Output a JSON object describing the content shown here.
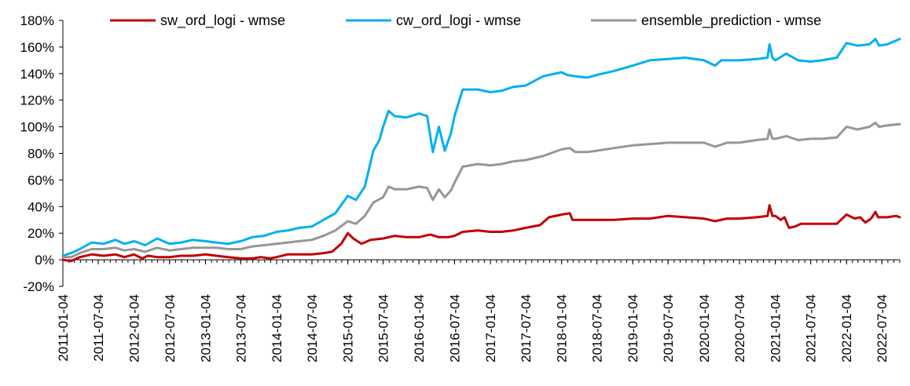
{
  "chart_data": {
    "type": "line",
    "title": "",
    "xlabel": "",
    "ylabel": "",
    "y_unit": "%",
    "ylim": [
      -20,
      180
    ],
    "y_ticks": [
      -20,
      0,
      20,
      40,
      60,
      80,
      100,
      120,
      140,
      160,
      180
    ],
    "y_tick_labels": [
      "-20%",
      "0%",
      "20%",
      "40%",
      "60%",
      "80%",
      "100%",
      "120%",
      "140%",
      "160%",
      "180%"
    ],
    "x_range": [
      "2011-01-04",
      "2022-10-04"
    ],
    "x_tick_labels": [
      "2011-01-04",
      "2011-07-04",
      "2012-01-04",
      "2012-07-04",
      "2013-01-04",
      "2013-07-04",
      "2014-01-04",
      "2014-07-04",
      "2015-01-04",
      "2015-07-04",
      "2016-01-04",
      "2016-07-04",
      "2017-01-04",
      "2017-07-04",
      "2018-01-04",
      "2018-07-04",
      "2019-01-04",
      "2019-07-04",
      "2020-01-04",
      "2020-07-04",
      "2021-01-04",
      "2021-07-04",
      "2022-01-04",
      "2022-07-04"
    ],
    "legend_position": "top",
    "grid": false,
    "series": [
      {
        "name": "sw_ord_logi - wmse",
        "color": "#C00000",
        "points": [
          [
            "2011-01-04",
            0
          ],
          [
            "2011-02-15",
            -1
          ],
          [
            "2011-04-01",
            2
          ],
          [
            "2011-06-01",
            4
          ],
          [
            "2011-08-01",
            3
          ],
          [
            "2011-10-01",
            4
          ],
          [
            "2011-11-15",
            2
          ],
          [
            "2012-01-04",
            4
          ],
          [
            "2012-02-15",
            1
          ],
          [
            "2012-03-15",
            3
          ],
          [
            "2012-05-01",
            2
          ],
          [
            "2012-07-04",
            2
          ],
          [
            "2012-09-01",
            3
          ],
          [
            "2012-11-01",
            3
          ],
          [
            "2013-01-04",
            4
          ],
          [
            "2013-03-01",
            3
          ],
          [
            "2013-05-01",
            2
          ],
          [
            "2013-07-04",
            1
          ],
          [
            "2013-09-01",
            1
          ],
          [
            "2013-10-15",
            2
          ],
          [
            "2013-12-01",
            1
          ],
          [
            "2014-01-04",
            2
          ],
          [
            "2014-03-01",
            4
          ],
          [
            "2014-05-01",
            4
          ],
          [
            "2014-07-04",
            4
          ],
          [
            "2014-09-01",
            5
          ],
          [
            "2014-10-15",
            6
          ],
          [
            "2014-12-01",
            12
          ],
          [
            "2015-01-04",
            20
          ],
          [
            "2015-02-01",
            16
          ],
          [
            "2015-03-15",
            12
          ],
          [
            "2015-05-01",
            15
          ],
          [
            "2015-07-04",
            16
          ],
          [
            "2015-09-01",
            18
          ],
          [
            "2015-11-01",
            17
          ],
          [
            "2016-01-04",
            17
          ],
          [
            "2016-03-01",
            19
          ],
          [
            "2016-04-15",
            17
          ],
          [
            "2016-06-01",
            17
          ],
          [
            "2016-07-04",
            18
          ],
          [
            "2016-08-15",
            21
          ],
          [
            "2016-11-01",
            22
          ],
          [
            "2017-01-04",
            21
          ],
          [
            "2017-03-01",
            21
          ],
          [
            "2017-05-01",
            22
          ],
          [
            "2017-07-04",
            24
          ],
          [
            "2017-09-15",
            26
          ],
          [
            "2017-11-01",
            32
          ],
          [
            "2018-01-04",
            34
          ],
          [
            "2018-02-15",
            35
          ],
          [
            "2018-03-01",
            30
          ],
          [
            "2018-05-01",
            30
          ],
          [
            "2018-07-04",
            30
          ],
          [
            "2018-10-01",
            30
          ],
          [
            "2019-01-04",
            31
          ],
          [
            "2019-04-01",
            31
          ],
          [
            "2019-07-04",
            33
          ],
          [
            "2019-10-01",
            32
          ],
          [
            "2020-01-04",
            31
          ],
          [
            "2020-03-01",
            29
          ],
          [
            "2020-05-01",
            31
          ],
          [
            "2020-07-04",
            31
          ],
          [
            "2020-10-01",
            32
          ],
          [
            "2020-11-25",
            33
          ],
          [
            "2020-12-05",
            41
          ],
          [
            "2020-12-20",
            33
          ],
          [
            "2021-01-04",
            33
          ],
          [
            "2021-02-01",
            30
          ],
          [
            "2021-02-20",
            32
          ],
          [
            "2021-03-15",
            24
          ],
          [
            "2021-04-15",
            25
          ],
          [
            "2021-05-15",
            27
          ],
          [
            "2021-07-04",
            27
          ],
          [
            "2021-09-01",
            27
          ],
          [
            "2021-11-15",
            27
          ],
          [
            "2022-01-04",
            34
          ],
          [
            "2022-02-15",
            31
          ],
          [
            "2022-03-15",
            32
          ],
          [
            "2022-04-10",
            28
          ],
          [
            "2022-05-10",
            31
          ],
          [
            "2022-06-01",
            36
          ],
          [
            "2022-06-15",
            32
          ],
          [
            "2022-08-01",
            32
          ],
          [
            "2022-09-15",
            33
          ],
          [
            "2022-10-04",
            32
          ]
        ]
      },
      {
        "name": "cw_ord_logi - wmse",
        "color": "#00B0F0",
        "points": [
          [
            "2011-01-04",
            3
          ],
          [
            "2011-02-15",
            5
          ],
          [
            "2011-04-01",
            8
          ],
          [
            "2011-06-01",
            13
          ],
          [
            "2011-08-01",
            12
          ],
          [
            "2011-10-01",
            15
          ],
          [
            "2011-11-15",
            12
          ],
          [
            "2012-01-04",
            14
          ],
          [
            "2012-03-01",
            11
          ],
          [
            "2012-05-01",
            16
          ],
          [
            "2012-07-04",
            12
          ],
          [
            "2012-09-01",
            13
          ],
          [
            "2012-11-01",
            15
          ],
          [
            "2013-01-04",
            14
          ],
          [
            "2013-03-01",
            13
          ],
          [
            "2013-05-01",
            12
          ],
          [
            "2013-07-04",
            14
          ],
          [
            "2013-09-01",
            17
          ],
          [
            "2013-11-01",
            18
          ],
          [
            "2014-01-04",
            21
          ],
          [
            "2014-03-01",
            22
          ],
          [
            "2014-05-01",
            24
          ],
          [
            "2014-07-04",
            25
          ],
          [
            "2014-09-01",
            30
          ],
          [
            "2014-11-01",
            35
          ],
          [
            "2015-01-04",
            48
          ],
          [
            "2015-02-15",
            45
          ],
          [
            "2015-04-01",
            55
          ],
          [
            "2015-05-15",
            82
          ],
          [
            "2015-06-15",
            90
          ],
          [
            "2015-07-04",
            100
          ],
          [
            "2015-08-01",
            112
          ],
          [
            "2015-09-01",
            108
          ],
          [
            "2015-11-01",
            107
          ],
          [
            "2016-01-04",
            110
          ],
          [
            "2016-02-15",
            108
          ],
          [
            "2016-03-15",
            81
          ],
          [
            "2016-04-15",
            100
          ],
          [
            "2016-05-15",
            82
          ],
          [
            "2016-06-15",
            95
          ],
          [
            "2016-07-04",
            108
          ],
          [
            "2016-08-15",
            128
          ],
          [
            "2016-11-01",
            128
          ],
          [
            "2017-01-04",
            126
          ],
          [
            "2017-03-01",
            127
          ],
          [
            "2017-05-01",
            130
          ],
          [
            "2017-07-04",
            131
          ],
          [
            "2017-10-01",
            138
          ],
          [
            "2018-01-04",
            141
          ],
          [
            "2018-02-01",
            139
          ],
          [
            "2018-03-15",
            138
          ],
          [
            "2018-05-15",
            137
          ],
          [
            "2018-07-04",
            139
          ],
          [
            "2018-10-01",
            142
          ],
          [
            "2019-01-04",
            146
          ],
          [
            "2019-04-01",
            150
          ],
          [
            "2019-07-04",
            151
          ],
          [
            "2019-10-01",
            152
          ],
          [
            "2020-01-04",
            150
          ],
          [
            "2020-03-01",
            146
          ],
          [
            "2020-04-01",
            150
          ],
          [
            "2020-07-04",
            150
          ],
          [
            "2020-10-01",
            151
          ],
          [
            "2020-11-25",
            152
          ],
          [
            "2020-12-05",
            162
          ],
          [
            "2020-12-20",
            152
          ],
          [
            "2021-01-04",
            150
          ],
          [
            "2021-03-01",
            155
          ],
          [
            "2021-05-01",
            150
          ],
          [
            "2021-07-04",
            149
          ],
          [
            "2021-09-01",
            150
          ],
          [
            "2021-11-15",
            152
          ],
          [
            "2022-01-04",
            163
          ],
          [
            "2022-03-01",
            161
          ],
          [
            "2022-05-01",
            162
          ],
          [
            "2022-06-01",
            166
          ],
          [
            "2022-06-20",
            161
          ],
          [
            "2022-08-01",
            162
          ],
          [
            "2022-10-04",
            166
          ]
        ]
      },
      {
        "name": "ensemble_prediction - wmse",
        "color": "#969696",
        "points": [
          [
            "2011-01-04",
            2
          ],
          [
            "2011-02-15",
            2
          ],
          [
            "2011-04-01",
            5
          ],
          [
            "2011-06-01",
            8
          ],
          [
            "2011-08-01",
            8
          ],
          [
            "2011-10-01",
            9
          ],
          [
            "2011-11-15",
            7
          ],
          [
            "2012-01-04",
            8
          ],
          [
            "2012-03-01",
            6
          ],
          [
            "2012-05-01",
            9
          ],
          [
            "2012-07-04",
            7
          ],
          [
            "2012-09-01",
            8
          ],
          [
            "2012-11-01",
            9
          ],
          [
            "2013-01-04",
            9
          ],
          [
            "2013-03-01",
            9
          ],
          [
            "2013-05-01",
            8
          ],
          [
            "2013-07-04",
            8
          ],
          [
            "2013-09-01",
            10
          ],
          [
            "2013-11-01",
            11
          ],
          [
            "2014-01-04",
            12
          ],
          [
            "2014-03-01",
            13
          ],
          [
            "2014-05-01",
            14
          ],
          [
            "2014-07-04",
            15
          ],
          [
            "2014-09-01",
            18
          ],
          [
            "2014-11-01",
            22
          ],
          [
            "2015-01-04",
            29
          ],
          [
            "2015-02-15",
            27
          ],
          [
            "2015-04-01",
            33
          ],
          [
            "2015-05-15",
            43
          ],
          [
            "2015-07-04",
            47
          ],
          [
            "2015-08-01",
            55
          ],
          [
            "2015-09-01",
            53
          ],
          [
            "2015-11-01",
            53
          ],
          [
            "2016-01-04",
            55
          ],
          [
            "2016-02-15",
            54
          ],
          [
            "2016-03-15",
            45
          ],
          [
            "2016-04-15",
            53
          ],
          [
            "2016-05-15",
            47
          ],
          [
            "2016-06-15",
            52
          ],
          [
            "2016-07-04",
            58
          ],
          [
            "2016-08-15",
            70
          ],
          [
            "2016-11-01",
            72
          ],
          [
            "2017-01-04",
            71
          ],
          [
            "2017-03-01",
            72
          ],
          [
            "2017-05-01",
            74
          ],
          [
            "2017-07-04",
            75
          ],
          [
            "2017-10-01",
            78
          ],
          [
            "2018-01-04",
            83
          ],
          [
            "2018-02-15",
            84
          ],
          [
            "2018-03-15",
            81
          ],
          [
            "2018-05-15",
            81
          ],
          [
            "2018-07-04",
            82
          ],
          [
            "2018-10-01",
            84
          ],
          [
            "2019-01-04",
            86
          ],
          [
            "2019-04-01",
            87
          ],
          [
            "2019-07-04",
            88
          ],
          [
            "2019-10-01",
            88
          ],
          [
            "2020-01-04",
            88
          ],
          [
            "2020-03-01",
            85
          ],
          [
            "2020-05-01",
            88
          ],
          [
            "2020-07-04",
            88
          ],
          [
            "2020-10-01",
            90
          ],
          [
            "2020-11-25",
            91
          ],
          [
            "2020-12-05",
            98
          ],
          [
            "2020-12-20",
            91
          ],
          [
            "2021-01-04",
            91
          ],
          [
            "2021-03-01",
            93
          ],
          [
            "2021-05-01",
            90
          ],
          [
            "2021-07-04",
            91
          ],
          [
            "2021-09-01",
            91
          ],
          [
            "2021-11-15",
            92
          ],
          [
            "2022-01-04",
            100
          ],
          [
            "2022-03-01",
            98
          ],
          [
            "2022-05-01",
            100
          ],
          [
            "2022-06-01",
            103
          ],
          [
            "2022-06-20",
            100
          ],
          [
            "2022-08-01",
            101
          ],
          [
            "2022-10-04",
            102
          ]
        ]
      }
    ]
  }
}
